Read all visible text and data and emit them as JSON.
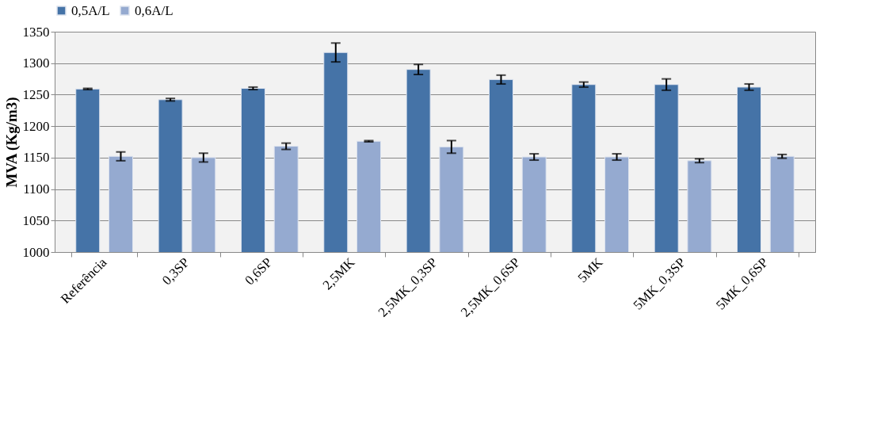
{
  "chart_data": {
    "type": "bar",
    "ylabel": "MVA (Kg/m3)",
    "categories": [
      "Referência",
      "0,3SP",
      "0,6SP",
      "2,5MK",
      "2,5MK_0,3SP",
      "2,5MK_0,6SP",
      "5MK",
      "5MK_0,3SP",
      "5MK_0,6SP"
    ],
    "series": [
      {
        "name": "0,5A/L",
        "color": "#4573a7",
        "values": [
          1259,
          1242,
          1260,
          1317,
          1290,
          1274,
          1266,
          1266,
          1262
        ],
        "errors": [
          1,
          2,
          2,
          15,
          8,
          7,
          4,
          9,
          5
        ]
      },
      {
        "name": "0,6A/L",
        "color": "#95aad0",
        "values": [
          1152,
          1150,
          1168,
          1176,
          1167,
          1151,
          1151,
          1145,
          1152
        ],
        "errors": [
          7,
          7,
          5,
          1,
          10,
          5,
          5,
          3,
          3
        ]
      }
    ],
    "ylim": [
      1000,
      1350
    ],
    "yticks": [
      1000,
      1050,
      1100,
      1150,
      1200,
      1250,
      1300,
      1350
    ],
    "grid": "y",
    "legend": "top"
  }
}
